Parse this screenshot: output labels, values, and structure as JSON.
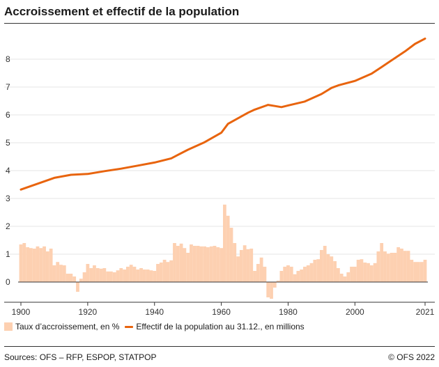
{
  "title": "Accroissement et effectif de la population",
  "legend": {
    "bars_label": "Taux d’accroissement, en %",
    "line_label": "Effectif de la population au 31.12., en millions"
  },
  "footer": {
    "sources": "Sources: OFS – RFP, ESPOP, STATPOP",
    "copyright": "© OFS 2022"
  },
  "colors": {
    "bar": "#fdd0b1",
    "line": "#e8640e",
    "axis": "#333333",
    "grid": "#e6e6e6"
  },
  "chart_data": {
    "type": "bar+line",
    "title": "Accroissement et effectif de la population",
    "xlim": [
      1900,
      2021
    ],
    "ylim": [
      -0.6,
      9.0
    ],
    "x_ticks": [
      1900,
      1920,
      1940,
      1960,
      1980,
      2000,
      2021
    ],
    "y_ticks": [
      0,
      1,
      2,
      3,
      4,
      5,
      6,
      7,
      8
    ],
    "x_tick_labels": [
      "1900",
      "1920",
      "1940",
      "1960",
      "1980",
      "2000",
      "2021"
    ],
    "y_tick_labels": [
      "0",
      "1",
      "2",
      "3",
      "4",
      "5",
      "6",
      "7",
      "8"
    ],
    "series": [
      {
        "name": "Taux d’accroissement, en %",
        "kind": "bar",
        "years": [
          1900,
          1901,
          1902,
          1903,
          1904,
          1905,
          1906,
          1907,
          1908,
          1909,
          1910,
          1911,
          1912,
          1913,
          1914,
          1915,
          1916,
          1917,
          1918,
          1919,
          1920,
          1921,
          1922,
          1923,
          1924,
          1925,
          1926,
          1927,
          1928,
          1929,
          1930,
          1931,
          1932,
          1933,
          1934,
          1935,
          1936,
          1937,
          1938,
          1939,
          1940,
          1941,
          1942,
          1943,
          1944,
          1945,
          1946,
          1947,
          1948,
          1949,
          1950,
          1951,
          1952,
          1953,
          1954,
          1955,
          1956,
          1957,
          1958,
          1959,
          1960,
          1961,
          1962,
          1963,
          1964,
          1965,
          1966,
          1967,
          1968,
          1969,
          1970,
          1971,
          1972,
          1973,
          1974,
          1975,
          1976,
          1977,
          1978,
          1979,
          1980,
          1981,
          1982,
          1983,
          1984,
          1985,
          1986,
          1987,
          1988,
          1989,
          1990,
          1991,
          1992,
          1993,
          1994,
          1995,
          1996,
          1997,
          1998,
          1999,
          2000,
          2001,
          2002,
          2003,
          2004,
          2005,
          2006,
          2007,
          2008,
          2009,
          2010,
          2011,
          2012,
          2013,
          2014,
          2015,
          2016,
          2017,
          2018,
          2019,
          2020,
          2021
        ],
        "values": [
          1.35,
          1.4,
          1.25,
          1.22,
          1.2,
          1.28,
          1.22,
          1.28,
          1.1,
          1.2,
          0.6,
          0.72,
          0.62,
          0.6,
          0.3,
          0.3,
          0.2,
          -0.35,
          0.12,
          0.35,
          0.65,
          0.5,
          0.6,
          0.5,
          0.48,
          0.5,
          0.38,
          0.38,
          0.35,
          0.42,
          0.5,
          0.45,
          0.55,
          0.62,
          0.55,
          0.45,
          0.5,
          0.45,
          0.45,
          0.42,
          0.4,
          0.65,
          0.7,
          0.8,
          0.72,
          0.78,
          1.4,
          1.3,
          1.38,
          1.22,
          1.05,
          1.35,
          1.3,
          1.3,
          1.28,
          1.28,
          1.25,
          1.28,
          1.3,
          1.25,
          1.22,
          2.78,
          2.38,
          1.95,
          1.4,
          0.92,
          1.15,
          1.32,
          1.18,
          1.2,
          0.4,
          0.65,
          0.88,
          0.55,
          -0.55,
          -0.6,
          -0.2,
          0.05,
          0.4,
          0.55,
          0.6,
          0.55,
          0.28,
          0.4,
          0.45,
          0.55,
          0.6,
          0.68,
          0.8,
          0.82,
          1.15,
          1.3,
          1.0,
          0.92,
          0.75,
          0.5,
          0.3,
          0.2,
          0.35,
          0.55,
          0.55,
          0.8,
          0.82,
          0.7,
          0.68,
          0.6,
          0.68,
          1.1,
          1.4,
          1.1,
          1.02,
          1.05,
          1.05,
          1.25,
          1.2,
          1.12,
          1.12,
          0.8,
          0.72,
          0.72,
          0.72,
          0.8
        ]
      },
      {
        "name": "Effectif de la population au 31.12., en millions",
        "kind": "line",
        "years": [
          1900,
          1905,
          1910,
          1915,
          1918,
          1920,
          1925,
          1930,
          1935,
          1940,
          1945,
          1950,
          1955,
          1960,
          1962,
          1965,
          1968,
          1970,
          1974,
          1976,
          1978,
          1980,
          1985,
          1990,
          1993,
          1995,
          2000,
          2005,
          2008,
          2010,
          2015,
          2018,
          2021
        ],
        "values": [
          3.32,
          3.53,
          3.74,
          3.85,
          3.87,
          3.88,
          3.98,
          4.07,
          4.18,
          4.29,
          4.44,
          4.75,
          5.02,
          5.36,
          5.68,
          5.88,
          6.08,
          6.19,
          6.36,
          6.32,
          6.28,
          6.34,
          6.48,
          6.75,
          6.97,
          7.06,
          7.22,
          7.48,
          7.72,
          7.88,
          8.28,
          8.55,
          8.74
        ]
      }
    ],
    "xlabel": "",
    "ylabel": ""
  }
}
